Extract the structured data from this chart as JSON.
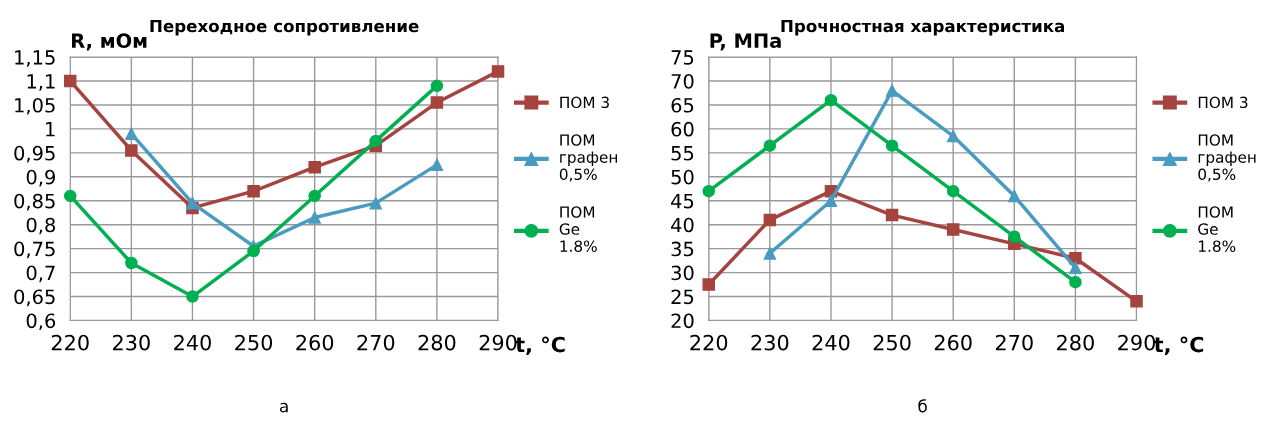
{
  "chart_data": [
    {
      "type": "line",
      "title": "Переходное сопротивление",
      "xlabel": "t, °C",
      "ylabel": "R, мОм",
      "annotations": [
        "а"
      ],
      "x": [
        220,
        230,
        240,
        250,
        260,
        270,
        280,
        290
      ],
      "series": [
        {
          "name": "ПОМ 3",
          "color": "#a5433f",
          "marker": "square",
          "values": [
            1.1,
            0.955,
            0.835,
            0.87,
            0.92,
            0.965,
            1.055,
            1.12
          ]
        },
        {
          "name": "ПОМ графен 0,5%",
          "color": "#4a9bc0",
          "marker": "triangle",
          "values": [
            null,
            0.99,
            0.845,
            0.755,
            0.815,
            0.845,
            0.925,
            null
          ]
        },
        {
          "name": "ПОМ Ge 1.8%",
          "color": "#00b050",
          "marker": "circle",
          "values": [
            0.86,
            0.72,
            0.65,
            0.745,
            0.86,
            0.975,
            1.09,
            null
          ]
        }
      ],
      "xlim": [
        220,
        290
      ],
      "xticks": [
        220,
        230,
        240,
        250,
        260,
        270,
        280,
        290
      ],
      "ylim": [
        0.6,
        1.15
      ],
      "yticks": [
        {
          "value": 0.6,
          "label": "0,6"
        },
        {
          "value": 0.65,
          "label": "0,65"
        },
        {
          "value": 0.7,
          "label": "0,7"
        },
        {
          "value": 0.75,
          "label": "0,75"
        },
        {
          "value": 0.8,
          "label": "0,8"
        },
        {
          "value": 0.85,
          "label": "0,85"
        },
        {
          "value": 0.9,
          "label": "0,9"
        },
        {
          "value": 0.95,
          "label": "0,95"
        },
        {
          "value": 1,
          "label": "1"
        },
        {
          "value": 1.05,
          "label": "1,05"
        },
        {
          "value": 1.1,
          "label": "1,1"
        },
        {
          "value": 1.15,
          "label": "1,15"
        }
      ],
      "grid": true,
      "legend": "right"
    },
    {
      "type": "line",
      "title": "Прочностная характеристика",
      "xlabel": "t, °C",
      "ylabel": "P, МПа",
      "annotations": [
        "б"
      ],
      "x": [
        220,
        230,
        240,
        250,
        260,
        270,
        280,
        290
      ],
      "series": [
        {
          "name": "ПОМ 3",
          "color": "#a5433f",
          "marker": "square",
          "values": [
            27.5,
            41,
            47,
            42,
            39,
            36,
            33,
            24
          ]
        },
        {
          "name": "ПОМ графен 0,5%",
          "color": "#4a9bc0",
          "marker": "triangle",
          "values": [
            null,
            34,
            45,
            68,
            58.5,
            46,
            31,
            null
          ]
        },
        {
          "name": "ПОМ Ge 1.8%",
          "color": "#00b050",
          "marker": "circle",
          "values": [
            47,
            56.5,
            66,
            56.5,
            47,
            37.5,
            28,
            null
          ]
        }
      ],
      "xlim": [
        220,
        290
      ],
      "xticks": [
        220,
        230,
        240,
        250,
        260,
        270,
        280,
        290
      ],
      "ylim": [
        20,
        75
      ],
      "yticks": [
        20,
        25,
        30,
        35,
        40,
        45,
        50,
        55,
        60,
        65,
        70,
        75
      ],
      "grid": true,
      "legend": "right"
    }
  ]
}
